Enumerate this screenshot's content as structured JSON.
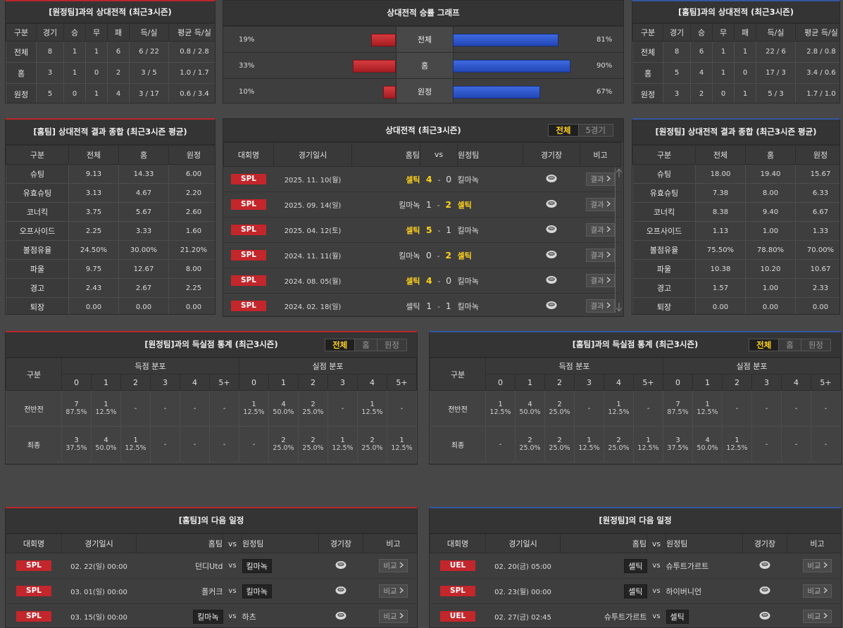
{
  "away_record": {
    "title": "[원정팀]과의 상대전적 (최근3시즌)",
    "headers": [
      "구분",
      "경기",
      "승",
      "무",
      "패",
      "득/실",
      "평균 득/실"
    ],
    "rows": [
      [
        "전체",
        8,
        1,
        1,
        6,
        "6 / 22",
        "0.8 / 2.8"
      ],
      [
        "홈",
        3,
        1,
        0,
        2,
        "3 / 5",
        "1.0 / 1.7"
      ],
      [
        "원정",
        5,
        0,
        1,
        4,
        "3 / 17",
        "0.6 / 3.4"
      ]
    ]
  },
  "win_graph": {
    "title": "상대전적 승률 그래프",
    "rows": [
      {
        "left": {
          "value": 19,
          "label": "19%"
        },
        "label": "전체",
        "right": {
          "value": 81,
          "label": "81%"
        }
      },
      {
        "left": {
          "value": 33,
          "label": "33%"
        },
        "label": "홈",
        "right": {
          "value": 90,
          "label": "90%"
        }
      },
      {
        "left": {
          "value": 10,
          "label": "10%"
        },
        "label": "원정",
        "right": {
          "value": 67,
          "label": "67%"
        }
      }
    ]
  },
  "home_record": {
    "title": "[홈팀]과의 상대전적 (최근3시즌)",
    "headers": [
      "구분",
      "경기",
      "승",
      "무",
      "패",
      "득/실",
      "평균 득/실"
    ],
    "rows": [
      [
        "전체",
        8,
        6,
        1,
        1,
        "22 / 6",
        "2.8 / 0.8"
      ],
      [
        "홈",
        5,
        4,
        1,
        0,
        "17 / 3",
        "3.4 / 0.6"
      ],
      [
        "원정",
        3,
        2,
        0,
        1,
        "5 / 3",
        "1.7 / 1.0"
      ]
    ]
  },
  "home_summary": {
    "title": "[홈팀] 상대전적 결과 종합 (최근3시즌 평균)",
    "headers": [
      "구분",
      "전체",
      "홈",
      "원정"
    ],
    "rows": [
      [
        "슈팅",
        "9.13",
        "14.33",
        "6.00"
      ],
      [
        "유효슈팅",
        "3.13",
        "4.67",
        "2.20"
      ],
      [
        "코너킥",
        "3.75",
        "5.67",
        "2.60"
      ],
      [
        "오프사이드",
        "2.25",
        "3.33",
        "1.60"
      ],
      [
        "볼점유율",
        "24.50%",
        "30.00%",
        "21.20%"
      ],
      [
        "파울",
        "9.75",
        "12.67",
        "8.00"
      ],
      [
        "경고",
        "2.43",
        "2.67",
        "2.25"
      ],
      [
        "퇴장",
        "0.00",
        "0.00",
        "0.00"
      ]
    ]
  },
  "h2h": {
    "title": "상대전적 (최근3시즌)",
    "tabs": [
      "전체",
      "5경기"
    ],
    "headers": [
      "대회명",
      "경기일시",
      "홈팀",
      "vs",
      "원정팀",
      "경기장",
      "비고"
    ],
    "score_sep": "-",
    "button": "결과",
    "matches": [
      {
        "league": "SPL",
        "date": "2025. 11. 10(월)",
        "home": "셀틱",
        "home_score": 4,
        "away_score": 0,
        "away": "킬마녹"
      },
      {
        "league": "SPL",
        "date": "2025. 09. 14(일)",
        "home": "킬마녹",
        "home_score": 1,
        "away_score": 2,
        "away": "셀틱"
      },
      {
        "league": "SPL",
        "date": "2025. 04. 12(토)",
        "home": "셀틱",
        "home_score": 5,
        "away_score": 1,
        "away": "킬마녹"
      },
      {
        "league": "SPL",
        "date": "2024. 11. 11(월)",
        "home": "킬마녹",
        "home_score": 0,
        "away_score": 2,
        "away": "셀틱"
      },
      {
        "league": "SPL",
        "date": "2024. 08. 05(월)",
        "home": "셀틱",
        "home_score": 4,
        "away_score": 0,
        "away": "킬마녹"
      },
      {
        "league": "SPL",
        "date": "2024. 02. 18(일)",
        "home": "셀틱",
        "home_score": 1,
        "away_score": 1,
        "away": "킬마녹"
      }
    ]
  },
  "away_summary": {
    "title": "[원정팀] 상대전적 결과 종합 (최근3시즌 평균)",
    "headers": [
      "구분",
      "전체",
      "홈",
      "원정"
    ],
    "rows": [
      [
        "슈팅",
        "18.00",
        "19.40",
        "15.67"
      ],
      [
        "유효슈팅",
        "7.38",
        "8.00",
        "6.33"
      ],
      [
        "코너킥",
        "8.38",
        "9.40",
        "6.67"
      ],
      [
        "오프사이드",
        "1.13",
        "1.00",
        "1.33"
      ],
      [
        "볼점유율",
        "75.50%",
        "78.80%",
        "70.00%"
      ],
      [
        "파울",
        "10.38",
        "10.20",
        "10.67"
      ],
      [
        "경고",
        "1.57",
        "1.00",
        "2.33"
      ],
      [
        "퇴장",
        "0.00",
        "0.00",
        "0.00"
      ]
    ]
  },
  "away_goals": {
    "title": "[원정팀]과의 득실점 통계 (최근3시즌)",
    "tabs": [
      "전체",
      "홈",
      "원정"
    ],
    "label_header": "구분",
    "groups": [
      "득점 분포",
      "실점 분포"
    ],
    "buckets": [
      "0",
      "1",
      "2",
      "3",
      "4",
      "5+"
    ],
    "rows": [
      {
        "label": "전반전",
        "cells": [
          {
            "n": 7,
            "pct": "87.5%"
          },
          {
            "n": 1,
            "pct": "12.5%"
          },
          "-",
          "-",
          "-",
          "-",
          {
            "n": 1,
            "pct": "12.5%"
          },
          {
            "n": 4,
            "pct": "50.0%"
          },
          {
            "n": 2,
            "pct": "25.0%"
          },
          "-",
          {
            "n": 1,
            "pct": "12.5%"
          },
          "-"
        ]
      },
      {
        "label": "최종",
        "cells": [
          {
            "n": 3,
            "pct": "37.5%"
          },
          {
            "n": 4,
            "pct": "50.0%"
          },
          {
            "n": 1,
            "pct": "12.5%"
          },
          "-",
          "-",
          "-",
          "-",
          {
            "n": 2,
            "pct": "25.0%"
          },
          {
            "n": 2,
            "pct": "25.0%"
          },
          {
            "n": 1,
            "pct": "12.5%"
          },
          {
            "n": 2,
            "pct": "25.0%"
          },
          {
            "n": 1,
            "pct": "12.5%"
          }
        ]
      }
    ]
  },
  "home_goals": {
    "title": "[홈팀]과의 득실점 통계 (최근3시즌)",
    "tabs": [
      "전체",
      "홈",
      "원정"
    ],
    "label_header": "구분",
    "groups": [
      "득점 분포",
      "실점 분포"
    ],
    "buckets": [
      "0",
      "1",
      "2",
      "3",
      "4",
      "5+"
    ],
    "rows": [
      {
        "label": "전반전",
        "cells": [
          {
            "n": 1,
            "pct": "12.5%"
          },
          {
            "n": 4,
            "pct": "50.0%"
          },
          {
            "n": 2,
            "pct": "25.0%"
          },
          "-",
          {
            "n": 1,
            "pct": "12.5%"
          },
          "-",
          {
            "n": 7,
            "pct": "87.5%"
          },
          {
            "n": 1,
            "pct": "12.5%"
          },
          "-",
          "-",
          "-",
          "-"
        ]
      },
      {
        "label": "최종",
        "cells": [
          "-",
          {
            "n": 2,
            "pct": "25.0%"
          },
          {
            "n": 2,
            "pct": "25.0%"
          },
          {
            "n": 1,
            "pct": "12.5%"
          },
          {
            "n": 2,
            "pct": "25.0%"
          },
          {
            "n": 1,
            "pct": "12.5%"
          },
          {
            "n": 3,
            "pct": "37.5%"
          },
          {
            "n": 4,
            "pct": "50.0%"
          },
          {
            "n": 1,
            "pct": "12.5%"
          },
          "-",
          "-",
          "-"
        ]
      }
    ]
  },
  "home_next": {
    "title": "[홈팀]의 다음 일정",
    "headers": [
      "대회명",
      "경기일시",
      "홈팀",
      "vs",
      "원정팀",
      "경기장",
      "비고"
    ],
    "vs": "vs",
    "button": "비교",
    "rows": [
      {
        "league": "SPL",
        "date": "02. 22(일) 00:00",
        "home": "던디Utd",
        "away": "킬마녹",
        "boxed": "away"
      },
      {
        "league": "SPL",
        "date": "03. 01(일) 00:00",
        "home": "폴커크",
        "away": "킬마녹",
        "boxed": "away"
      },
      {
        "league": "SPL",
        "date": "03. 15(일) 00:00",
        "home": "킬마녹",
        "away": "하츠",
        "boxed": "home"
      }
    ]
  },
  "away_next": {
    "title": "[원정팀]의 다음 일정",
    "headers": [
      "대회명",
      "경기일시",
      "홈팀",
      "vs",
      "원정팀",
      "경기장",
      "비고"
    ],
    "vs": "vs",
    "button": "비교",
    "rows": [
      {
        "league": "UEL",
        "date": "02. 20(금) 05:00",
        "home": "셀틱",
        "away": "슈투트가르트",
        "boxed": "home"
      },
      {
        "league": "SPL",
        "date": "02. 23(월) 00:00",
        "home": "셀틱",
        "away": "하이버니언",
        "boxed": "home"
      },
      {
        "league": "UEL",
        "date": "02. 27(금) 02:45",
        "home": "슈투트가르트",
        "away": "셀틱",
        "boxed": "away"
      }
    ]
  }
}
